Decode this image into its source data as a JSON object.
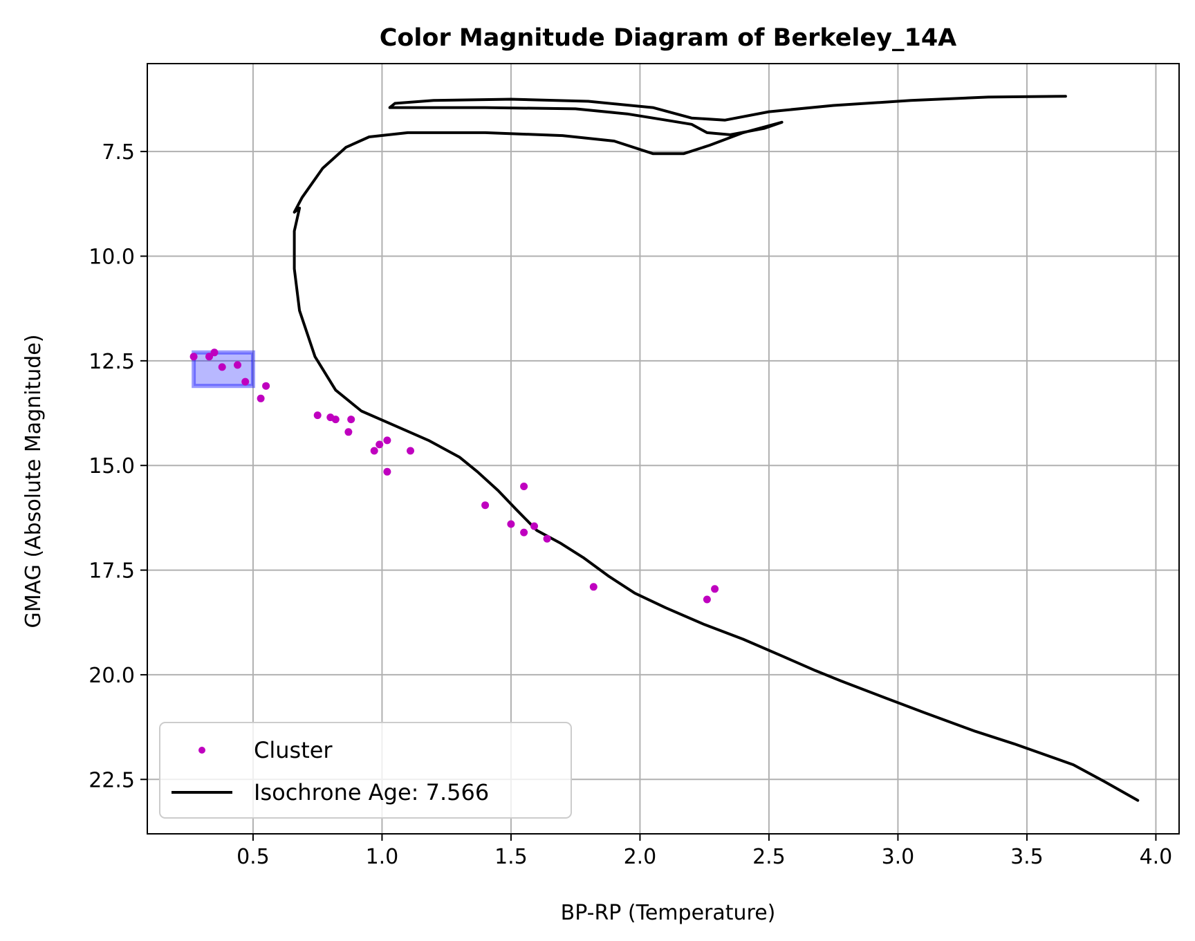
{
  "chart_data": {
    "type": "scatter",
    "title": "Color Magnitude Diagram of Berkeley_14A",
    "xlabel": "BP-RP (Temperature)",
    "ylabel": "GMAG (Absolute Magnitude)",
    "xlim": [
      0.09,
      4.09
    ],
    "ylim": [
      23.8,
      5.4
    ],
    "y_inverted": true,
    "grid": true,
    "x_ticks": [
      {
        "value": 0.5,
        "label": "0.5"
      },
      {
        "value": 1.0,
        "label": "1.0"
      },
      {
        "value": 1.5,
        "label": "1.5"
      },
      {
        "value": 2.0,
        "label": "2.0"
      },
      {
        "value": 2.5,
        "label": "2.5"
      },
      {
        "value": 3.0,
        "label": "3.0"
      },
      {
        "value": 3.5,
        "label": "3.5"
      },
      {
        "value": 4.0,
        "label": "4.0"
      }
    ],
    "y_ticks": [
      {
        "value": 7.5,
        "label": "7.5"
      },
      {
        "value": 10.0,
        "label": "10.0"
      },
      {
        "value": 12.5,
        "label": "12.5"
      },
      {
        "value": 15.0,
        "label": "15.0"
      },
      {
        "value": 17.5,
        "label": "17.5"
      },
      {
        "value": 20.0,
        "label": "20.0"
      },
      {
        "value": 22.5,
        "label": "22.5"
      }
    ],
    "legend": {
      "position": "lower-left",
      "entries": [
        {
          "label": "Cluster",
          "kind": "scatter",
          "color": "#bf00bf"
        },
        {
          "label": "Isochrone Age: 7.566",
          "kind": "line",
          "color": "#000000"
        }
      ]
    },
    "highlight_box": {
      "x": [
        0.27,
        0.5
      ],
      "y": [
        12.3,
        13.1
      ],
      "color": "#0000ff"
    },
    "series": [
      {
        "name": "Cluster",
        "type": "scatter",
        "color": "#bf00bf",
        "points": [
          [
            0.27,
            12.4
          ],
          [
            0.33,
            12.4
          ],
          [
            0.35,
            12.3
          ],
          [
            0.38,
            12.65
          ],
          [
            0.44,
            12.6
          ],
          [
            0.47,
            13.0
          ],
          [
            0.53,
            13.4
          ],
          [
            0.55,
            13.1
          ],
          [
            0.75,
            13.8
          ],
          [
            0.8,
            13.85
          ],
          [
            0.82,
            13.9
          ],
          [
            0.87,
            14.2
          ],
          [
            0.88,
            13.9
          ],
          [
            0.97,
            14.65
          ],
          [
            0.99,
            14.5
          ],
          [
            1.02,
            14.4
          ],
          [
            1.02,
            15.15
          ],
          [
            1.11,
            14.65
          ],
          [
            1.4,
            15.95
          ],
          [
            1.5,
            16.4
          ],
          [
            1.55,
            15.5
          ],
          [
            1.55,
            16.6
          ],
          [
            1.59,
            16.45
          ],
          [
            1.64,
            16.75
          ],
          [
            1.82,
            17.9
          ],
          [
            2.26,
            18.2
          ],
          [
            2.29,
            17.95
          ]
        ]
      },
      {
        "name": "Isochrone Age: 7.566",
        "type": "line",
        "color": "#000000",
        "points": [
          [
            3.93,
            23.0
          ],
          [
            3.8,
            22.55
          ],
          [
            3.68,
            22.15
          ],
          [
            3.45,
            21.65
          ],
          [
            3.3,
            21.35
          ],
          [
            3.1,
            20.9
          ],
          [
            2.95,
            20.55
          ],
          [
            2.78,
            20.15
          ],
          [
            2.68,
            19.9
          ],
          [
            2.55,
            19.55
          ],
          [
            2.4,
            19.15
          ],
          [
            2.25,
            18.8
          ],
          [
            2.1,
            18.4
          ],
          [
            1.98,
            18.05
          ],
          [
            1.88,
            17.65
          ],
          [
            1.78,
            17.2
          ],
          [
            1.69,
            16.85
          ],
          [
            1.6,
            16.55
          ],
          [
            1.52,
            16.05
          ],
          [
            1.45,
            15.6
          ],
          [
            1.37,
            15.15
          ],
          [
            1.3,
            14.8
          ],
          [
            1.18,
            14.4
          ],
          [
            1.05,
            14.05
          ],
          [
            0.92,
            13.7
          ],
          [
            0.82,
            13.2
          ],
          [
            0.74,
            12.4
          ],
          [
            0.68,
            11.3
          ],
          [
            0.66,
            10.3
          ],
          [
            0.66,
            9.4
          ],
          [
            0.68,
            8.85
          ],
          [
            0.66,
            8.95
          ],
          [
            0.69,
            8.6
          ],
          [
            0.77,
            7.9
          ],
          [
            0.86,
            7.4
          ],
          [
            0.95,
            7.15
          ],
          [
            1.1,
            7.05
          ],
          [
            1.4,
            7.05
          ],
          [
            1.7,
            7.12
          ],
          [
            1.9,
            7.25
          ],
          [
            2.05,
            7.55
          ],
          [
            2.17,
            7.55
          ],
          [
            2.27,
            7.35
          ],
          [
            2.4,
            7.05
          ],
          [
            2.55,
            6.8
          ],
          [
            2.48,
            6.95
          ],
          [
            2.35,
            7.1
          ],
          [
            2.26,
            7.05
          ],
          [
            2.2,
            6.85
          ],
          [
            2.1,
            6.75
          ],
          [
            1.95,
            6.6
          ],
          [
            1.75,
            6.48
          ],
          [
            1.4,
            6.45
          ],
          [
            1.03,
            6.45
          ],
          [
            1.05,
            6.35
          ],
          [
            1.2,
            6.28
          ],
          [
            1.5,
            6.25
          ],
          [
            1.8,
            6.3
          ],
          [
            2.05,
            6.45
          ],
          [
            2.2,
            6.7
          ],
          [
            2.33,
            6.75
          ],
          [
            2.5,
            6.55
          ],
          [
            2.75,
            6.4
          ],
          [
            3.05,
            6.28
          ],
          [
            3.35,
            6.2
          ],
          [
            3.65,
            6.18
          ]
        ]
      }
    ]
  }
}
